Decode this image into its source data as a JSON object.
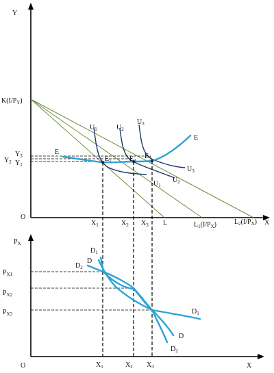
{
  "top_panel": {
    "y_axis_label": "Y",
    "x_axis_label": "X",
    "origin_label": "O",
    "k_label_main": "K(I/P",
    "k_label_sub": "Y",
    "k_label_close": ")",
    "y_labels": [
      {
        "main": "Y",
        "sub": "3"
      },
      {
        "main": "Y",
        "sub": "2"
      },
      {
        "main": "Y",
        "sub": "1"
      }
    ],
    "x_labels": [
      {
        "main": "X",
        "sub": "1"
      },
      {
        "main": "X",
        "sub": "2"
      },
      {
        "main": "X",
        "sub": "3"
      }
    ],
    "l_label": "L",
    "l1_label": {
      "main": "L",
      "sub": "1",
      "rest": "(I/P",
      "sub2": "X",
      "close": ")"
    },
    "l2_label": {
      "main": "L",
      "sub": "2",
      "rest": "(I/P",
      "sub2": "X",
      "close": ")"
    },
    "ic_top_labels": [
      {
        "main": "U",
        "sub": "1"
      },
      {
        "main": "U",
        "sub": "2"
      },
      {
        "main": "U",
        "sub": "3"
      }
    ],
    "ic_end_labels": [
      {
        "main": "U",
        "sub": "1"
      },
      {
        "main": "U",
        "sub": "2"
      },
      {
        "main": "U",
        "sub": "3"
      }
    ],
    "e_points": [
      {
        "main": "E",
        "sub": "1"
      },
      {
        "main": "E",
        "sub": "2"
      },
      {
        "main": "E",
        "sub": "3"
      }
    ],
    "pcc_label_left": "E",
    "pcc_label_right": "E"
  },
  "bottom_panel": {
    "y_axis_main": "P",
    "y_axis_sub": "X",
    "x_axis_label": "X",
    "origin_label": "O",
    "price_labels": [
      {
        "main": "P",
        "sub": "X1"
      },
      {
        "main": "P",
        "sub": "X2"
      },
      {
        "main": "P",
        "sub": "X3"
      }
    ],
    "x_labels": [
      {
        "main": "X",
        "sub": "1"
      },
      {
        "main": "X",
        "sub": "2"
      },
      {
        "main": "X",
        "sub": "3"
      }
    ],
    "demand_labels": {
      "d1_top": {
        "main": "D",
        "sub": "1"
      },
      "d_top": {
        "main": "D",
        "sub": ""
      },
      "d2_top": {
        "main": "D",
        "sub": "2"
      },
      "d1_end": {
        "main": "D",
        "sub": "1"
      },
      "d_end": {
        "main": "D",
        "sub": ""
      },
      "d2_end": {
        "main": "D",
        "sub": "2"
      }
    }
  },
  "colors": {
    "budget_lines": "#6e8c3a",
    "indifference_curves": "#1f3a66",
    "derived_curves": "#2aa3d6",
    "axes": "#000000"
  }
}
